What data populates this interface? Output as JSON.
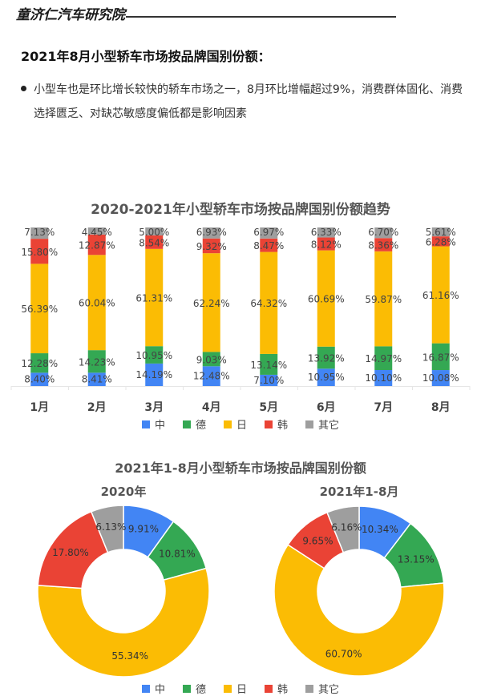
{
  "header": {
    "brand": "童济仁汽车研究院",
    "heading": "2021年8月小型轿车市场按品牌国别份额：",
    "bullet": "小型车也是环比增长较快的轿车市场之一，8月环比增幅超过9%，消费群体固化、消费选择匮乏、对缺芯敏感度偏低都是影响因素"
  },
  "legend": [
    {
      "label": "中",
      "color": "#4285F4"
    },
    {
      "label": "德",
      "color": "#34A853"
    },
    {
      "label": "日",
      "color": "#FBBC04"
    },
    {
      "label": "韩",
      "color": "#EA4335"
    },
    {
      "label": "其它",
      "color": "#9E9E9E"
    }
  ],
  "chart_data": [
    {
      "type": "bar",
      "stacked": true,
      "title": "2020-2021年小型轿车市场按品牌国别份额趋势",
      "xlabel": "",
      "ylabel": "",
      "ylim": [
        0,
        100
      ],
      "categories": [
        "1月",
        "2月",
        "3月",
        "4月",
        "5月",
        "6月",
        "7月",
        "8月"
      ],
      "series": [
        {
          "name": "中",
          "color": "#4285F4",
          "values": [
            8.4,
            8.41,
            14.19,
            12.48,
            7.1,
            10.95,
            10.1,
            10.08
          ]
        },
        {
          "name": "德",
          "color": "#34A853",
          "values": [
            12.28,
            14.23,
            10.95,
            9.03,
            13.14,
            13.92,
            14.97,
            16.87
          ]
        },
        {
          "name": "日",
          "color": "#FBBC04",
          "values": [
            56.39,
            60.04,
            61.31,
            62.24,
            64.32,
            60.69,
            59.87,
            61.16
          ]
        },
        {
          "name": "韩",
          "color": "#EA4335",
          "values": [
            15.8,
            12.87,
            8.54,
            9.32,
            8.47,
            8.12,
            8.36,
            6.28
          ]
        },
        {
          "name": "其它",
          "color": "#9E9E9E",
          "values": [
            7.13,
            4.45,
            5.0,
            6.93,
            6.97,
            6.33,
            6.7,
            5.61
          ]
        }
      ],
      "legend_position": "bottom",
      "grid": false
    },
    {
      "type": "pie",
      "donut": true,
      "title": "2021年1-8月小型轿车市场按品牌国别份额",
      "subtitle": "2020年",
      "categories": [
        "中",
        "德",
        "日",
        "韩",
        "其它"
      ],
      "values": [
        9.91,
        10.81,
        55.34,
        17.8,
        6.13
      ],
      "labels": [
        "9.91%",
        "10.81%",
        "55.34%",
        "17.80%",
        "6.13%"
      ],
      "colors": [
        "#4285F4",
        "#34A853",
        "#FBBC04",
        "#EA4335",
        "#9E9E9E"
      ],
      "legend_position": "bottom"
    },
    {
      "type": "pie",
      "donut": true,
      "title": "2021年1-8月小型轿车市场按品牌国别份额",
      "subtitle": "2021年1-8月",
      "categories": [
        "中",
        "德",
        "日",
        "韩",
        "其它"
      ],
      "values": [
        10.34,
        13.15,
        60.7,
        9.65,
        6.16
      ],
      "labels": [
        "10.34%",
        "13.15%",
        "60.70%",
        "9.65%",
        "6.16%"
      ],
      "colors": [
        "#4285F4",
        "#34A853",
        "#FBBC04",
        "#EA4335",
        "#9E9E9E"
      ],
      "legend_position": "bottom"
    }
  ]
}
